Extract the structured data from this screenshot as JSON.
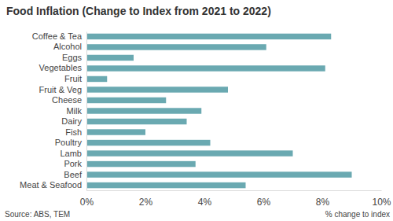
{
  "chart_data": {
    "type": "bar",
    "orientation": "horizontal",
    "title": "Food Inflation (Change to Index from 2021 to 2022)",
    "x_label": "% change to index",
    "source": "Source: ABS, TEM",
    "categories": [
      "Coffee & Tea",
      "Alcohol",
      "Eggs",
      "Vegetables",
      "Fruit",
      "Fruit & Veg",
      "Cheese",
      "Milk",
      "Dairy",
      "Fish",
      "Poultry",
      "Lamb",
      "Pork",
      "Beef",
      "Meat & Seafood"
    ],
    "values": [
      8.3,
      6.1,
      1.6,
      8.1,
      0.7,
      4.8,
      2.7,
      3.9,
      3.4,
      2.0,
      4.2,
      7.0,
      3.7,
      9.0,
      5.4
    ],
    "color": "#6aa9b1",
    "xlim": [
      0,
      10
    ],
    "xticks": [
      {
        "value": 0,
        "label": "0%"
      },
      {
        "value": 2,
        "label": "2%"
      },
      {
        "value": 4,
        "label": "4%"
      },
      {
        "value": 6,
        "label": "6%"
      },
      {
        "value": 8,
        "label": "8%"
      },
      {
        "value": 10,
        "label": "10%"
      }
    ],
    "grid": false
  }
}
